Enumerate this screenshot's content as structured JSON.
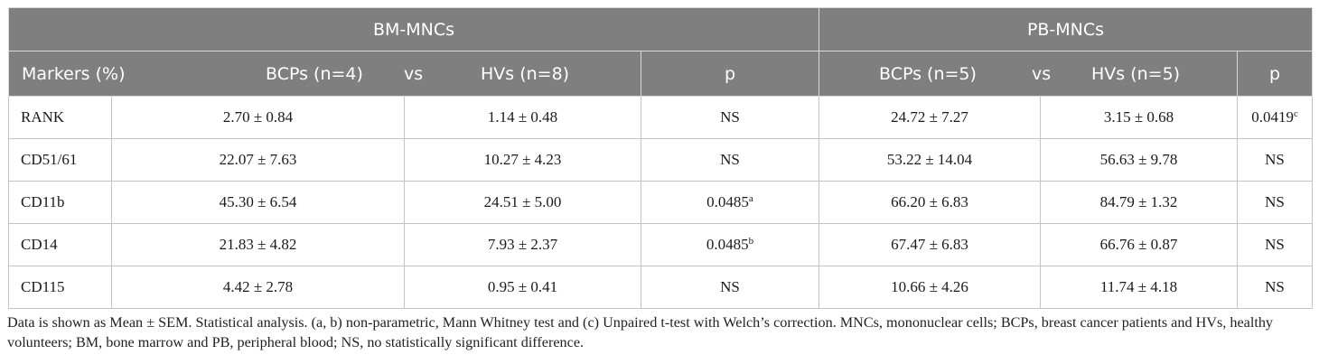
{
  "table": {
    "group_headers": {
      "left": "BM-MNCs",
      "right": "PB-MNCs"
    },
    "column_headers": {
      "markers": "Markers (%)",
      "bm_bcp": "BCPs (n=4)",
      "bm_vs": "vs",
      "bm_hv": "HVs (n=8)",
      "bm_p": "p",
      "pb_bcp": "BCPs (n=5)",
      "pb_vs": "vs",
      "pb_hv": "HVs (n=5)",
      "pb_p": "p"
    },
    "rows": [
      {
        "marker": "RANK",
        "bm_bcp": "2.70 ± 0.84",
        "bm_hv": "1.14 ± 0.48",
        "bm_p": "NS",
        "bm_p_sup": "",
        "pb_bcp": "24.72 ± 7.27",
        "pb_hv": "3.15 ± 0.68",
        "pb_p": "0.0419",
        "pb_p_sup": "c"
      },
      {
        "marker": "CD51/61",
        "bm_bcp": "22.07 ± 7.63",
        "bm_hv": "10.27 ± 4.23",
        "bm_p": "NS",
        "bm_p_sup": "",
        "pb_bcp": "53.22 ± 14.04",
        "pb_hv": "56.63 ± 9.78",
        "pb_p": "NS",
        "pb_p_sup": ""
      },
      {
        "marker": "CD11b",
        "bm_bcp": "45.30 ± 6.54",
        "bm_hv": "24.51 ± 5.00",
        "bm_p": "0.0485",
        "bm_p_sup": "a",
        "pb_bcp": "66.20 ± 6.83",
        "pb_hv": "84.79 ± 1.32",
        "pb_p": "NS",
        "pb_p_sup": ""
      },
      {
        "marker": "CD14",
        "bm_bcp": "21.83 ± 4.82",
        "bm_hv": "7.93 ± 2.37",
        "bm_p": "0.0485",
        "bm_p_sup": "b",
        "pb_bcp": "67.47 ± 6.83",
        "pb_hv": "66.76 ± 0.87",
        "pb_p": "NS",
        "pb_p_sup": ""
      },
      {
        "marker": "CD115",
        "bm_bcp": "4.42 ± 2.78",
        "bm_hv": "0.95 ± 0.41",
        "bm_p": "NS",
        "bm_p_sup": "",
        "pb_bcp": "10.66 ± 4.26",
        "pb_hv": "11.74 ± 4.18",
        "pb_p": "NS",
        "pb_p_sup": ""
      }
    ]
  },
  "footnote": "Data is shown as Mean ± SEM. Statistical analysis. (a, b) non-parametric, Mann Whitney test and (c) Unpaired t-test with Welch’s correction. MNCs, mononuclear cells; BCPs, breast cancer patients and HVs, healthy volunteers; BM, bone marrow and PB, peripheral blood; NS, no statistically significant difference.",
  "colors": {
    "header_bg": "#7f7f7f",
    "header_text": "#ffffff",
    "grid": "#c4c4c4",
    "body_text": "#1a1a1a"
  }
}
